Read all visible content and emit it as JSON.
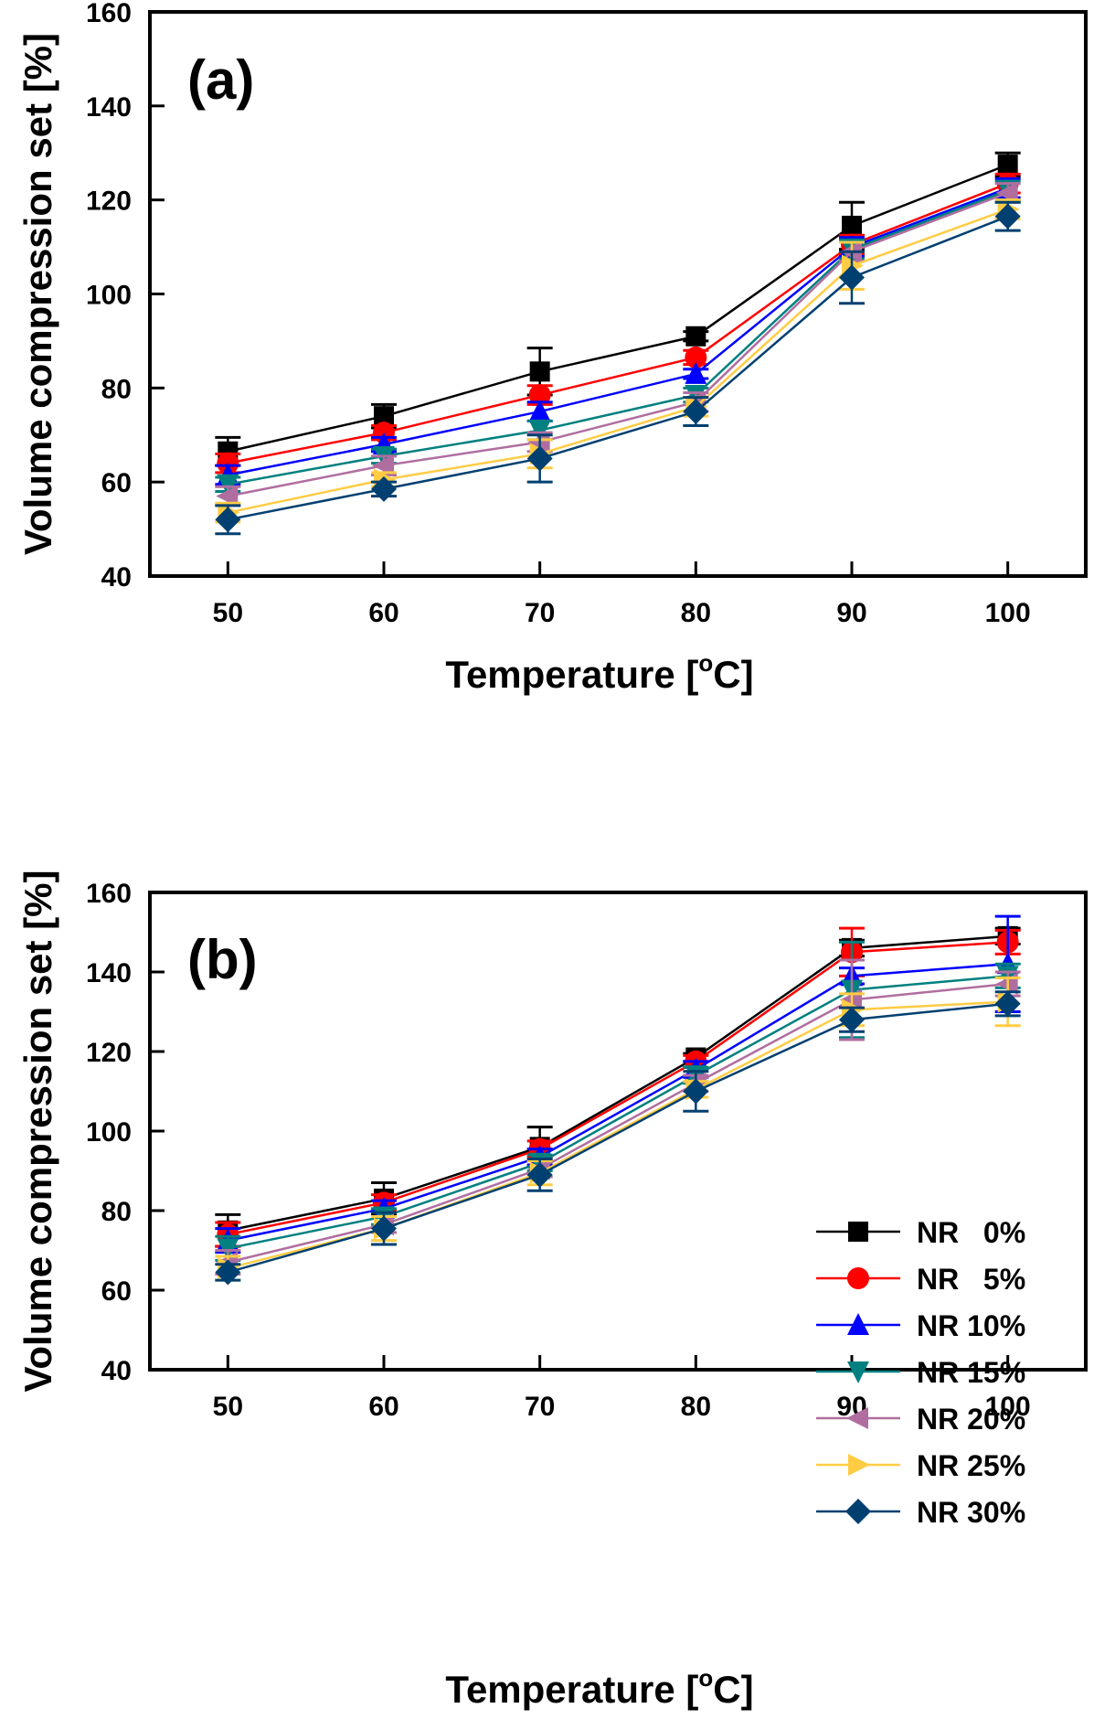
{
  "chart_data": [
    {
      "type": "line",
      "panel_label": "(a)",
      "xlabel": "Temperature [°C]",
      "xlabel_main": "Temperature [",
      "xlabel_sup": "o",
      "xlabel_end": "C]",
      "ylabel": "Volume compression set [%]",
      "xlim": [
        45,
        105
      ],
      "ylim": [
        40,
        160
      ],
      "x": [
        50,
        60,
        70,
        80,
        90,
        100
      ],
      "x_ticks": [
        "50",
        "60",
        "70",
        "80",
        "90",
        "100"
      ],
      "y_ticks": [
        "40",
        "60",
        "80",
        "100",
        "120",
        "140",
        "160"
      ],
      "grid": false,
      "legend": false,
      "series": [
        {
          "name": "NR   0%",
          "color": "#000000",
          "marker": "square",
          "values": [
            66.5,
            74,
            83.5,
            91,
            114.5,
            127.5
          ],
          "errors": [
            3,
            2.5,
            5,
            1,
            5,
            2.5
          ]
        },
        {
          "name": "NR   5%",
          "color": "#ff0000",
          "marker": "circle",
          "values": [
            64,
            70.5,
            78.5,
            86.5,
            110.5,
            123.5
          ],
          "errors": [
            2,
            1.5,
            2,
            1.5,
            2,
            2
          ]
        },
        {
          "name": "NR 10%",
          "color": "#0000ff",
          "marker": "triangle-up",
          "values": [
            61.5,
            68,
            75,
            83,
            110,
            122.5
          ],
          "errors": [
            2,
            1.5,
            2,
            1,
            2,
            2
          ]
        },
        {
          "name": "NR 15%",
          "color": "#008080",
          "marker": "triangle-down",
          "values": [
            59.5,
            65.5,
            71,
            78.5,
            109.5,
            122
          ],
          "errors": [
            1.5,
            1.5,
            2,
            1.5,
            2,
            2
          ]
        },
        {
          "name": "NR 20%",
          "color": "#b06ea0",
          "marker": "triangle-left",
          "values": [
            57,
            63.5,
            68.5,
            77,
            109,
            121.5
          ],
          "errors": [
            2,
            2,
            2,
            2,
            2,
            2
          ]
        },
        {
          "name": "NR 25%",
          "color": "#ffcc44",
          "marker": "triangle-right",
          "values": [
            53.5,
            60.5,
            66,
            76,
            106,
            118
          ],
          "errors": [
            2,
            1.5,
            3,
            2,
            5,
            2
          ]
        },
        {
          "name": "NR 30%",
          "color": "#004070",
          "marker": "diamond",
          "values": [
            52,
            58.5,
            65,
            75,
            103.5,
            116.5
          ],
          "errors": [
            3,
            1.5,
            5,
            3,
            5.5,
            3
          ]
        }
      ]
    },
    {
      "type": "line",
      "panel_label": "(b)",
      "xlabel": "Temperature [°C]",
      "xlabel_main": "Temperature [",
      "xlabel_sup": "o",
      "xlabel_end": "C]",
      "ylabel": "Volume compression set [%]",
      "xlim": [
        45,
        105
      ],
      "ylim": [
        40,
        160
      ],
      "x": [
        50,
        60,
        70,
        80,
        90,
        100
      ],
      "x_ticks": [
        "50",
        "60",
        "70",
        "80",
        "90",
        "100"
      ],
      "y_ticks": [
        "40",
        "60",
        "80",
        "100",
        "120",
        "140",
        "160"
      ],
      "grid": false,
      "legend": "center-right",
      "series": [
        {
          "name": "NR   0%",
          "color": "#000000",
          "marker": "square",
          "values": [
            75,
            83,
            96,
            118.5,
            146,
            149
          ],
          "errors": [
            4,
            4,
            5,
            1,
            2,
            2
          ]
        },
        {
          "name": "NR   5%",
          "color": "#ff0000",
          "marker": "circle",
          "values": [
            74,
            82,
            95.5,
            117.5,
            145,
            147.5
          ],
          "errors": [
            3,
            2,
            2,
            1.5,
            6,
            3
          ]
        },
        {
          "name": "NR 10%",
          "color": "#0000ff",
          "marker": "triangle-up",
          "values": [
            72.5,
            80.5,
            93.5,
            115.5,
            139,
            142
          ],
          "errors": [
            3,
            2,
            2,
            2,
            2,
            12
          ]
        },
        {
          "name": "NR 15%",
          "color": "#008080",
          "marker": "triangle-down",
          "values": [
            70.5,
            78.5,
            92,
            114,
            135.5,
            139
          ],
          "errors": [
            3,
            2,
            2,
            2,
            12,
            3
          ]
        },
        {
          "name": "NR 20%",
          "color": "#b06ea0",
          "marker": "triangle-left",
          "values": [
            67,
            76.5,
            90.5,
            112,
            133,
            137
          ],
          "errors": [
            3,
            2,
            2,
            2,
            10,
            3
          ]
        },
        {
          "name": "NR 25%",
          "color": "#ffcc44",
          "marker": "triangle-right",
          "values": [
            65.5,
            75.5,
            89.5,
            110.5,
            130.5,
            132.5
          ],
          "errors": [
            3,
            3,
            3,
            2,
            4,
            6
          ]
        },
        {
          "name": "NR 30%",
          "color": "#004070",
          "marker": "diamond",
          "values": [
            64.5,
            75.5,
            89,
            110,
            128,
            132
          ],
          "errors": [
            2,
            4,
            4,
            5,
            3,
            3
          ]
        }
      ]
    }
  ]
}
